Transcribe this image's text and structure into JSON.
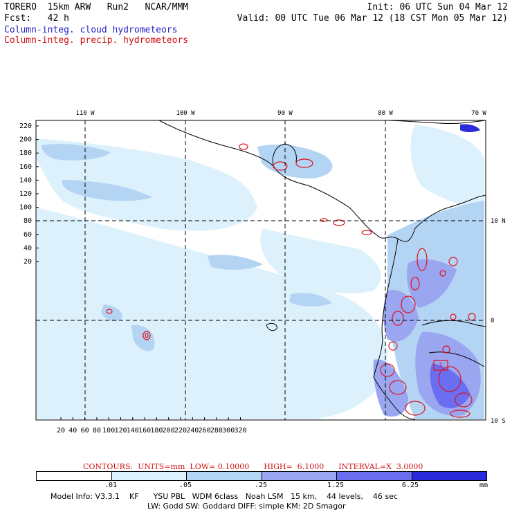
{
  "header": {
    "model_line": "TORERO  15km ARW   Run2   NCAR/MMM",
    "fcst_line": "Fcst:   42 h",
    "init_line": "Init: 06 UTC Sun 04 Mar 12",
    "valid_line": "Valid: 00 UTC Tue 06 Mar 12 (18 CST Mon 05 Mar 12)",
    "field1": "Column-integ. cloud hydrometeors",
    "field2": "Column-integ. precip. hydrometeors"
  },
  "colors": {
    "cloud_fill_levels": [
      "#ffffff",
      "#dcf1fb",
      "#b4d4f4",
      "#9aa6f0",
      "#6b6ef0",
      "#2b2bdc"
    ],
    "precip_contour": "#e0101c",
    "coast": "#000000"
  },
  "map": {
    "lon_labels": [
      "110 W",
      "100 W",
      "90 W",
      "80 W",
      "70 W"
    ],
    "lat_labels": [
      "10 N",
      "0",
      "10 S"
    ],
    "y_ticks": [
      "220",
      "200",
      "180",
      "160",
      "140",
      "120",
      "100",
      "80",
      "60",
      "40",
      "20"
    ],
    "x_ticks": [
      "20",
      "40",
      "60",
      "80",
      "100",
      "120",
      "140",
      "160",
      "180",
      "200",
      "220",
      "240",
      "260",
      "280",
      "300",
      "320"
    ],
    "contour_label": "1"
  },
  "contours_info": "CONTOURS:  UNITS=mm  LOW= 0.10000      HIGH=  6.1000      INTERVAL=X  3.0000",
  "colorbar": {
    "ticks": [
      ".01",
      ".05",
      ".25",
      "1.25",
      "6.25"
    ],
    "units": "mm"
  },
  "footer": {
    "line1": "Model Info: V3.3.1    KF      YSU PBL   WDM 6class   Noah LSM   15 km,    44 levels,    46 sec",
    "line2": "LW: Godd SW: Goddard DIFF: simple KM: 2D Smagor"
  }
}
